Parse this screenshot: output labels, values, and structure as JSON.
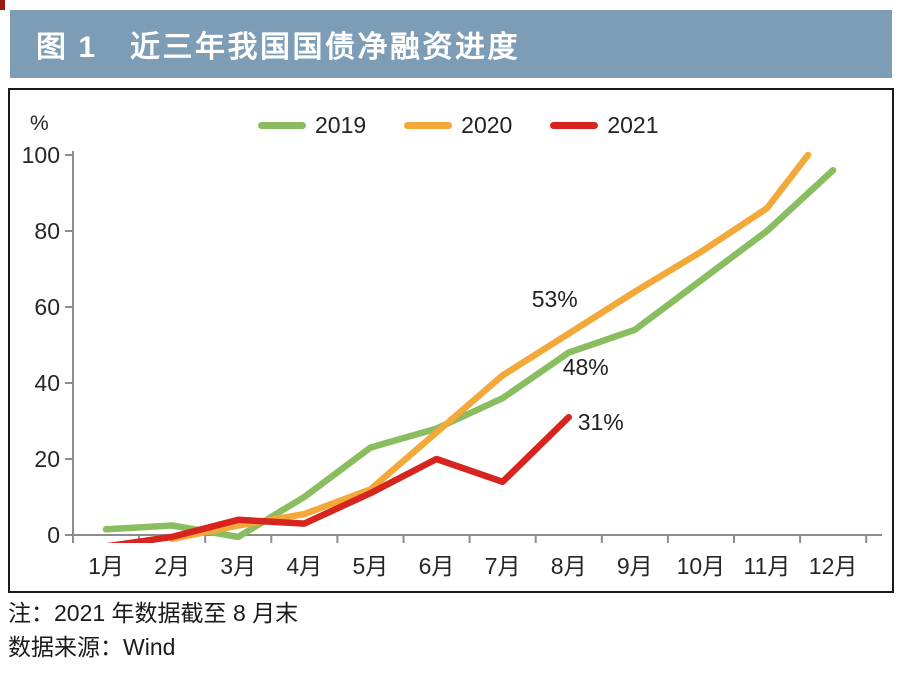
{
  "figure": {
    "corner_mark_color": "#9b1b10",
    "title_bar": {
      "bg_color": "#7d9cb6",
      "label": "图 1",
      "title": "近三年我国国债净融资进度"
    },
    "axis_unit_label": "%",
    "notes": [
      "注：2021 年数据截至 8 月末",
      "数据来源：Wind"
    ]
  },
  "chart_data": {
    "type": "line",
    "title": "近三年我国国债净融资进度",
    "ylabel": "%",
    "xlabel": "",
    "ylim": [
      0,
      100
    ],
    "yticks": [
      0,
      20,
      40,
      60,
      80,
      100
    ],
    "x_categories": [
      "1月",
      "2月",
      "3月",
      "4月",
      "5月",
      "6月",
      "7月",
      "8月",
      "9月",
      "10月",
      "11月",
      "12月"
    ],
    "grid": false,
    "legend_position": "top",
    "axis_color": "#8c8c8c",
    "series": [
      {
        "name": "2019",
        "color": "#8abd5f",
        "points": [
          [
            1,
            1.5
          ],
          [
            2,
            2.5
          ],
          [
            3,
            -0.5
          ],
          [
            4,
            10
          ],
          [
            5,
            23
          ],
          [
            6,
            28
          ],
          [
            7,
            36
          ],
          [
            8,
            48
          ],
          [
            9,
            54
          ],
          [
            10,
            67
          ],
          [
            11,
            80
          ],
          [
            12,
            96
          ]
        ]
      },
      {
        "name": "2020",
        "color": "#f3a83a",
        "points": [
          [
            2,
            -1
          ],
          [
            3,
            2.5
          ],
          [
            4,
            5.5
          ],
          [
            5,
            12
          ],
          [
            6,
            27
          ],
          [
            7,
            42
          ],
          [
            8,
            53
          ],
          [
            9,
            64
          ],
          [
            10,
            74.5
          ],
          [
            11,
            86
          ],
          [
            11.62,
            100
          ]
        ]
      },
      {
        "name": "2021",
        "color": "#d7241e",
        "points": [
          [
            1,
            -3
          ],
          [
            2,
            -0.5
          ],
          [
            3,
            4
          ],
          [
            4,
            3
          ],
          [
            5,
            11
          ],
          [
            6,
            20
          ],
          [
            7,
            14
          ],
          [
            8,
            31
          ]
        ]
      }
    ],
    "annotations": [
      {
        "text": "53%",
        "series": "2020",
        "month": 8,
        "value": 53
      },
      {
        "text": "48%",
        "series": "2019",
        "month": 8,
        "value": 48
      },
      {
        "text": "31%",
        "series": "2021",
        "month": 8,
        "value": 31
      }
    ]
  }
}
